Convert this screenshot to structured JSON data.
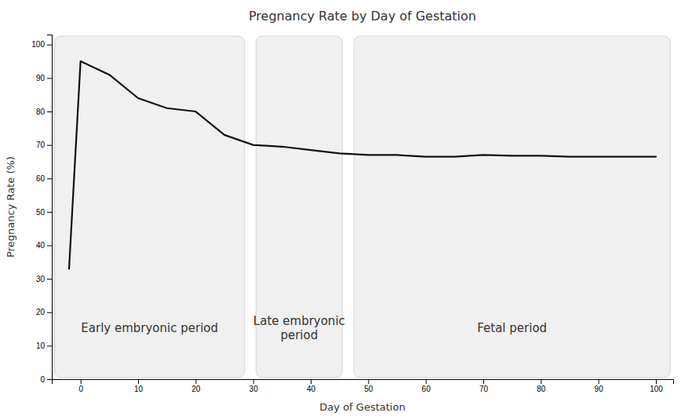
{
  "chart_data": {
    "type": "line",
    "title": "Pregnancy Rate by Day of Gestation",
    "x_label": "Day of Gestation",
    "y_label": "Pregnancy Rate (%)",
    "x": [
      -2,
      0,
      5,
      10,
      15,
      20,
      25,
      30,
      35,
      40,
      45,
      50,
      55,
      60,
      65,
      70,
      75,
      80,
      85,
      90,
      95,
      100
    ],
    "values": [
      33,
      95,
      91,
      84,
      81,
      80,
      73,
      70,
      69.5,
      68.5,
      67.5,
      67,
      67,
      66.5,
      66.5,
      67,
      66.8,
      66.8,
      66.5,
      66.5,
      66.5,
      66.5
    ],
    "color": "#111111",
    "xlim": [
      -5,
      103
    ],
    "ylim": [
      0,
      103
    ],
    "xticks": [
      0,
      10,
      20,
      30,
      40,
      50,
      60,
      70,
      80,
      90,
      100
    ],
    "yticks": [
      0,
      10,
      20,
      30,
      40,
      50,
      60,
      70,
      80,
      90,
      100
    ],
    "grid": false,
    "annotations": [
      {
        "text": "Early embryonic period",
        "x": [
          -4.5,
          28.5
        ]
      },
      {
        "text": "Late embryonic\nperiod",
        "x": [
          30.5,
          45.5
        ]
      },
      {
        "text": "Fetal period",
        "x": [
          47.5,
          102.5
        ]
      }
    ]
  }
}
